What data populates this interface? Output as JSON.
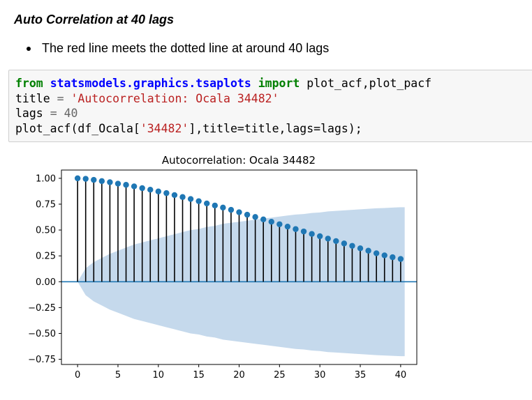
{
  "heading": "Auto Correlation at 40 lags",
  "bullet": "The red line meets the dotted line at around 40 lags",
  "code": {
    "line1": {
      "kw_from": "from",
      "module": "statsmodels.graphics.tsaplots",
      "kw_import": "import",
      "rest": "plot_acf,plot_pacf"
    },
    "line2": {
      "name": "title",
      "op": "=",
      "str": "'Autocorrelation: Ocala 34482'"
    },
    "line3": {
      "name": "lags",
      "op": "=",
      "num": "40"
    },
    "line4": {
      "pre": "plot_acf(df_Ocala[",
      "str": "'34482'",
      "post": "],title=title,lags=lags);"
    }
  },
  "chart_data": {
    "type": "stem",
    "title": "Autocorrelation: Ocala 34482",
    "xlabel": "",
    "ylabel": "",
    "xlim": [
      -2,
      42
    ],
    "ylim": [
      -0.8,
      1.08
    ],
    "xticks": [
      0,
      5,
      10,
      15,
      20,
      25,
      30,
      35,
      40
    ],
    "yticks": [
      "1.00",
      "0.75",
      "0.50",
      "0.25",
      "0.00",
      "−0.25",
      "−0.50",
      "−0.75"
    ],
    "ytick_values": [
      1.0,
      0.75,
      0.5,
      0.25,
      0.0,
      -0.25,
      -0.5,
      -0.75
    ],
    "lags": [
      0,
      1,
      2,
      3,
      4,
      5,
      6,
      7,
      8,
      9,
      10,
      11,
      12,
      13,
      14,
      15,
      16,
      17,
      18,
      19,
      20,
      21,
      22,
      23,
      24,
      25,
      26,
      27,
      28,
      29,
      30,
      31,
      32,
      33,
      34,
      35,
      36,
      37,
      38,
      39,
      40
    ],
    "acf": [
      1.0,
      0.995,
      0.985,
      0.973,
      0.962,
      0.948,
      0.937,
      0.922,
      0.905,
      0.89,
      0.873,
      0.857,
      0.838,
      0.819,
      0.8,
      0.779,
      0.757,
      0.737,
      0.717,
      0.695,
      0.672,
      0.648,
      0.626,
      0.603,
      0.58,
      0.556,
      0.533,
      0.509,
      0.486,
      0.462,
      0.44,
      0.417,
      0.393,
      0.37,
      0.347,
      0.323,
      0.3,
      0.275,
      0.255,
      0.237,
      0.22
    ],
    "confidence_upper": [
      0.0,
      0.13,
      0.19,
      0.23,
      0.27,
      0.3,
      0.33,
      0.36,
      0.38,
      0.4,
      0.42,
      0.44,
      0.46,
      0.48,
      0.5,
      0.51,
      0.53,
      0.54,
      0.56,
      0.57,
      0.58,
      0.59,
      0.6,
      0.61,
      0.62,
      0.63,
      0.64,
      0.65,
      0.655,
      0.665,
      0.67,
      0.68,
      0.685,
      0.69,
      0.695,
      0.7,
      0.705,
      0.71,
      0.713,
      0.717,
      0.72
    ],
    "colors": {
      "stem": "#000000",
      "marker": "#1f77b4",
      "zero_line": "#1f77b4",
      "band": "#c5d9ec"
    }
  }
}
